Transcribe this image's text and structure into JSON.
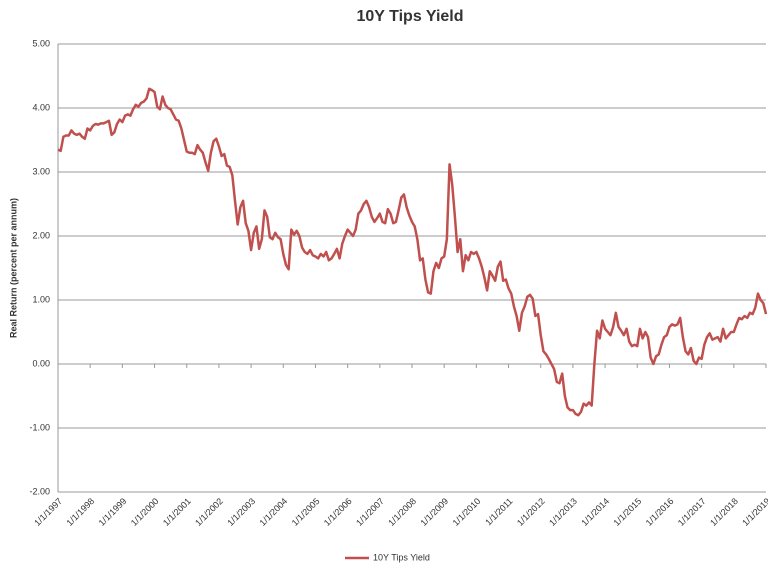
{
  "chart_data": {
    "type": "line",
    "title": "10Y Tips Yield",
    "y_label": "Real Return (percent per annum)",
    "categories": [
      "1/1/1997",
      null,
      null,
      null,
      null,
      null,
      null,
      null,
      null,
      null,
      null,
      null,
      "1/1/1998",
      null,
      null,
      null,
      null,
      null,
      null,
      null,
      null,
      null,
      null,
      null,
      "1/1/1999",
      null,
      null,
      null,
      null,
      null,
      null,
      null,
      null,
      null,
      null,
      null,
      "1/1/2000",
      null,
      null,
      null,
      null,
      null,
      null,
      null,
      null,
      null,
      null,
      null,
      "1/1/2001",
      null,
      null,
      null,
      null,
      null,
      null,
      null,
      null,
      null,
      null,
      null,
      "1/1/2002",
      null,
      null,
      null,
      null,
      null,
      null,
      null,
      null,
      null,
      null,
      null,
      "1/1/2003",
      null,
      null,
      null,
      null,
      null,
      null,
      null,
      null,
      null,
      null,
      null,
      "1/1/2004",
      null,
      null,
      null,
      null,
      null,
      null,
      null,
      null,
      null,
      null,
      null,
      "1/1/2005",
      null,
      null,
      null,
      null,
      null,
      null,
      null,
      null,
      null,
      null,
      null,
      "1/1/2006",
      null,
      null,
      null,
      null,
      null,
      null,
      null,
      null,
      null,
      null,
      null,
      "1/1/2007",
      null,
      null,
      null,
      null,
      null,
      null,
      null,
      null,
      null,
      null,
      null,
      "1/1/2008",
      null,
      null,
      null,
      null,
      null,
      null,
      null,
      null,
      null,
      null,
      null,
      "1/1/2009",
      null,
      null,
      null,
      null,
      null,
      null,
      null,
      null,
      null,
      null,
      null,
      "1/1/2010",
      null,
      null,
      null,
      null,
      null,
      null,
      null,
      null,
      null,
      null,
      null,
      "1/1/2011",
      null,
      null,
      null,
      null,
      null,
      null,
      null,
      null,
      null,
      null,
      null,
      "1/1/2012",
      null,
      null,
      null,
      null,
      null,
      null,
      null,
      null,
      null,
      null,
      null,
      "1/1/2013",
      null,
      null,
      null,
      null,
      null,
      null,
      null,
      null,
      null,
      null,
      null,
      "1/1/2014",
      null,
      null,
      null,
      null,
      null,
      null,
      null,
      null,
      null,
      null,
      null,
      "1/1/2015",
      null,
      null,
      null,
      null,
      null,
      null,
      null,
      null,
      null,
      null,
      null,
      "1/1/2016",
      null,
      null,
      null,
      null,
      null,
      null,
      null,
      null,
      null,
      null,
      null,
      "1/1/2017",
      null,
      null,
      null,
      null,
      null,
      null,
      null,
      null,
      null,
      null,
      null,
      "1/1/2018",
      null,
      null,
      null,
      null,
      null,
      null,
      null,
      null,
      null,
      null,
      null,
      "1/1/2019"
    ],
    "series": [
      {
        "name": "10Y Tips Yield",
        "color": "#c0504d",
        "values": [
          3.35,
          3.33,
          3.55,
          3.57,
          3.57,
          3.65,
          3.6,
          3.58,
          3.6,
          3.55,
          3.52,
          3.68,
          3.65,
          3.72,
          3.75,
          3.74,
          3.76,
          3.76,
          3.78,
          3.8,
          3.58,
          3.62,
          3.75,
          3.82,
          3.78,
          3.88,
          3.9,
          3.88,
          3.98,
          4.05,
          4.02,
          4.08,
          4.1,
          4.15,
          4.3,
          4.28,
          4.25,
          4.02,
          3.98,
          4.18,
          4.05,
          4.0,
          3.98,
          3.9,
          3.82,
          3.8,
          3.68,
          3.5,
          3.32,
          3.3,
          3.3,
          3.28,
          3.42,
          3.35,
          3.3,
          3.15,
          3.02,
          3.3,
          3.48,
          3.52,
          3.4,
          3.25,
          3.28,
          3.1,
          3.08,
          2.95,
          2.55,
          2.18,
          2.45,
          2.55,
          2.2,
          2.08,
          1.78,
          2.05,
          2.15,
          1.8,
          1.95,
          2.4,
          2.3,
          1.98,
          1.95,
          2.05,
          1.98,
          1.95,
          1.72,
          1.55,
          1.48,
          2.1,
          2.02,
          2.08,
          2.0,
          1.82,
          1.75,
          1.72,
          1.78,
          1.7,
          1.68,
          1.65,
          1.72,
          1.68,
          1.75,
          1.62,
          1.65,
          1.72,
          1.8,
          1.65,
          1.88,
          2.0,
          2.1,
          2.05,
          2.0,
          2.1,
          2.35,
          2.4,
          2.5,
          2.55,
          2.45,
          2.3,
          2.22,
          2.28,
          2.35,
          2.22,
          2.2,
          2.42,
          2.35,
          2.2,
          2.22,
          2.4,
          2.6,
          2.65,
          2.45,
          2.32,
          2.22,
          2.15,
          1.95,
          1.62,
          1.65,
          1.32,
          1.12,
          1.1,
          1.45,
          1.58,
          1.5,
          1.65,
          1.68,
          1.95,
          3.12,
          2.8,
          2.3,
          1.75,
          1.95,
          1.45,
          1.7,
          1.62,
          1.75,
          1.72,
          1.75,
          1.65,
          1.52,
          1.35,
          1.15,
          1.45,
          1.38,
          1.3,
          1.52,
          1.6,
          1.3,
          1.32,
          1.18,
          1.1,
          0.9,
          0.75,
          0.52,
          0.8,
          0.9,
          1.05,
          1.08,
          1.02,
          0.75,
          0.78,
          0.45,
          0.2,
          0.15,
          0.08,
          0.0,
          -0.08,
          -0.28,
          -0.3,
          -0.15,
          -0.5,
          -0.68,
          -0.72,
          -0.72,
          -0.78,
          -0.8,
          -0.75,
          -0.62,
          -0.65,
          -0.6,
          -0.65,
          0.0,
          0.52,
          0.4,
          0.68,
          0.55,
          0.5,
          0.45,
          0.58,
          0.8,
          0.58,
          0.52,
          0.45,
          0.55,
          0.35,
          0.28,
          0.3,
          0.28,
          0.55,
          0.4,
          0.5,
          0.42,
          0.1,
          0.0,
          0.12,
          0.15,
          0.3,
          0.42,
          0.45,
          0.58,
          0.62,
          0.6,
          0.62,
          0.72,
          0.42,
          0.2,
          0.15,
          0.25,
          0.05,
          0.0,
          0.1,
          0.08,
          0.3,
          0.42,
          0.48,
          0.38,
          0.4,
          0.42,
          0.35,
          0.55,
          0.4,
          0.45,
          0.5,
          0.5,
          0.62,
          0.72,
          0.7,
          0.75,
          0.72,
          0.8,
          0.78,
          0.88,
          1.1,
          1.0,
          0.95,
          0.78
        ]
      }
    ],
    "ylim": [
      -2,
      5
    ],
    "yticks": [
      {
        "value": -2,
        "label": "-2.00"
      },
      {
        "value": -1,
        "label": "-1.00"
      },
      {
        "value": 0,
        "label": "0.00"
      },
      {
        "value": 1,
        "label": "1.00"
      },
      {
        "value": 2,
        "label": "2.00"
      },
      {
        "value": 3,
        "label": "3.00"
      },
      {
        "value": 4,
        "label": "4.00"
      },
      {
        "value": 5,
        "label": "5.00"
      }
    ],
    "grid": true,
    "legend": "bottom"
  }
}
